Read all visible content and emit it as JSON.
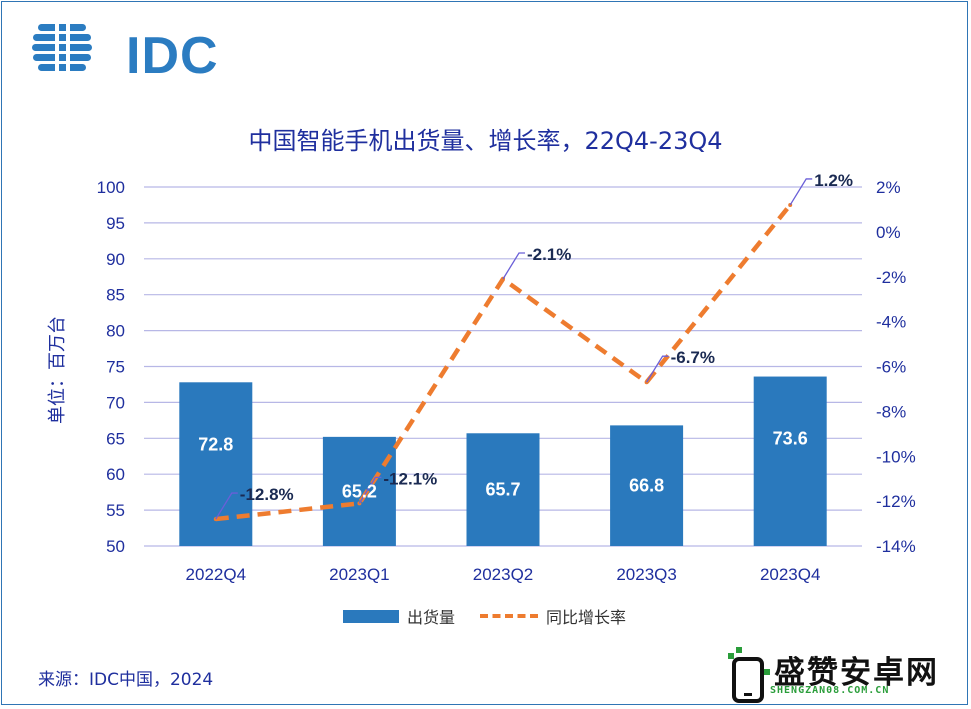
{
  "logo": {
    "text": "IDC",
    "color": "#2b7cc1"
  },
  "title": "中国智能手机出货量、增长率，22Q4-23Q4",
  "source": "来源：IDC中国，2024",
  "watermark": {
    "name": "盛赞安卓网",
    "domain": "SHENGZAN08.COM.CN"
  },
  "chart_data": {
    "type": "bar",
    "title": "中国智能手机出货量、增长率，22Q4-23Q4",
    "categories": [
      "2022Q4",
      "2023Q1",
      "2023Q2",
      "2023Q3",
      "2023Q4"
    ],
    "ylabel": "单位：百万台",
    "ylim": [
      50,
      100
    ],
    "yticks": [
      "50",
      "55",
      "60",
      "65",
      "70",
      "75",
      "80",
      "85",
      "90",
      "95",
      "100"
    ],
    "y2lim": [
      -14,
      2
    ],
    "y2ticks": [
      "-14%",
      "-12%",
      "-10%",
      "-8%",
      "-6%",
      "-4%",
      "-2%",
      "0%",
      "2%"
    ],
    "grid": true,
    "legend_position": "bottom",
    "series": [
      {
        "name": "出货量",
        "type": "bar",
        "axis": "left",
        "color": "#2a79bd",
        "values": [
          72.8,
          65.2,
          65.7,
          66.8,
          73.6
        ],
        "labels": [
          "72.8",
          "65.2",
          "65.7",
          "66.8",
          "73.6"
        ]
      },
      {
        "name": "同比增长率",
        "type": "line",
        "style": "dashed",
        "axis": "right",
        "color": "#ee7c2f",
        "values": [
          -12.8,
          -12.1,
          -2.1,
          -6.7,
          1.2
        ],
        "labels": [
          "-12.8%",
          "-12.1%",
          "-2.1%",
          "-6.7%",
          "1.2%"
        ]
      }
    ]
  }
}
